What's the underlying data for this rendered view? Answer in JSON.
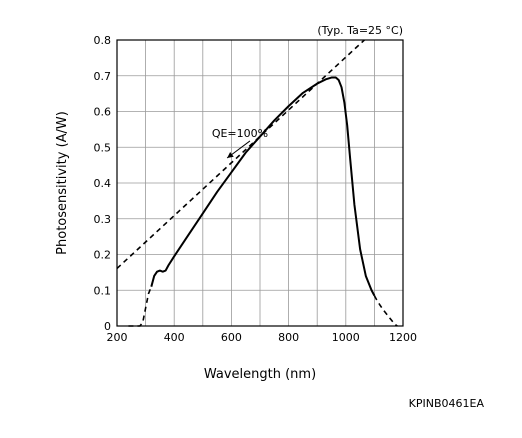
{
  "chart_data": {
    "type": "line",
    "condition_note": "(Typ. Ta=25 °C)",
    "xlabel": "Wavelength (nm)",
    "ylabel": "Photosensitivity (A/W)",
    "xlim": [
      200,
      1200
    ],
    "ylim": [
      0,
      0.8
    ],
    "xticks": [
      200,
      400,
      600,
      800,
      1000,
      1200
    ],
    "yticks": [
      0,
      0.1,
      0.2,
      0.3,
      0.4,
      0.5,
      0.6,
      0.7,
      0.8
    ],
    "ytick_labels": [
      "0",
      "0.1",
      "0.2",
      "0.3",
      "0.4",
      "0.5",
      "0.6",
      "0.7",
      "0.8"
    ],
    "grid": true,
    "grid_x_step": 100,
    "grid_y_step": 0.1,
    "series": [
      {
        "style": "solid",
        "color": "#000000",
        "x": [
          320,
          330,
          340,
          350,
          360,
          370,
          380,
          400,
          450,
          500,
          550,
          600,
          650,
          700,
          750,
          800,
          850,
          900,
          930,
          950,
          965,
          975,
          985,
          995,
          1005,
          1015,
          1030,
          1050,
          1070,
          1090,
          1100
        ],
        "y": [
          0.11,
          0.14,
          0.152,
          0.155,
          0.152,
          0.155,
          0.17,
          0.195,
          0.255,
          0.315,
          0.375,
          0.43,
          0.485,
          0.53,
          0.575,
          0.615,
          0.652,
          0.678,
          0.69,
          0.695,
          0.695,
          0.688,
          0.668,
          0.625,
          0.56,
          0.47,
          0.34,
          0.215,
          0.14,
          0.1,
          0.085
        ]
      },
      {
        "style": "dashed",
        "color": "#000000",
        "x": [
          240,
          260,
          265,
          280,
          290,
          300,
          310,
          320
        ],
        "y": [
          0.0,
          0.0,
          0.0,
          0.0,
          0.01,
          0.05,
          0.09,
          0.11
        ]
      },
      {
        "style": "dashed",
        "color": "#000000",
        "x": [
          1100,
          1110,
          1120,
          1130,
          1140,
          1150,
          1160,
          1170,
          1180
        ],
        "y": [
          0.085,
          0.07,
          0.058,
          0.046,
          0.036,
          0.026,
          0.016,
          0.006,
          0.0
        ]
      },
      {
        "name": "QE=100%",
        "style": "dashed",
        "color": "#000000",
        "x": [
          200,
          1065
        ],
        "y": [
          0.161,
          0.8
        ]
      }
    ],
    "annotations": [
      {
        "text": "QE=100%",
        "x": 630,
        "y": 0.54,
        "arrow_to_x": 585,
        "arrow_to_y": 0.47
      }
    ]
  },
  "figure_code": "KPINB0461EA"
}
